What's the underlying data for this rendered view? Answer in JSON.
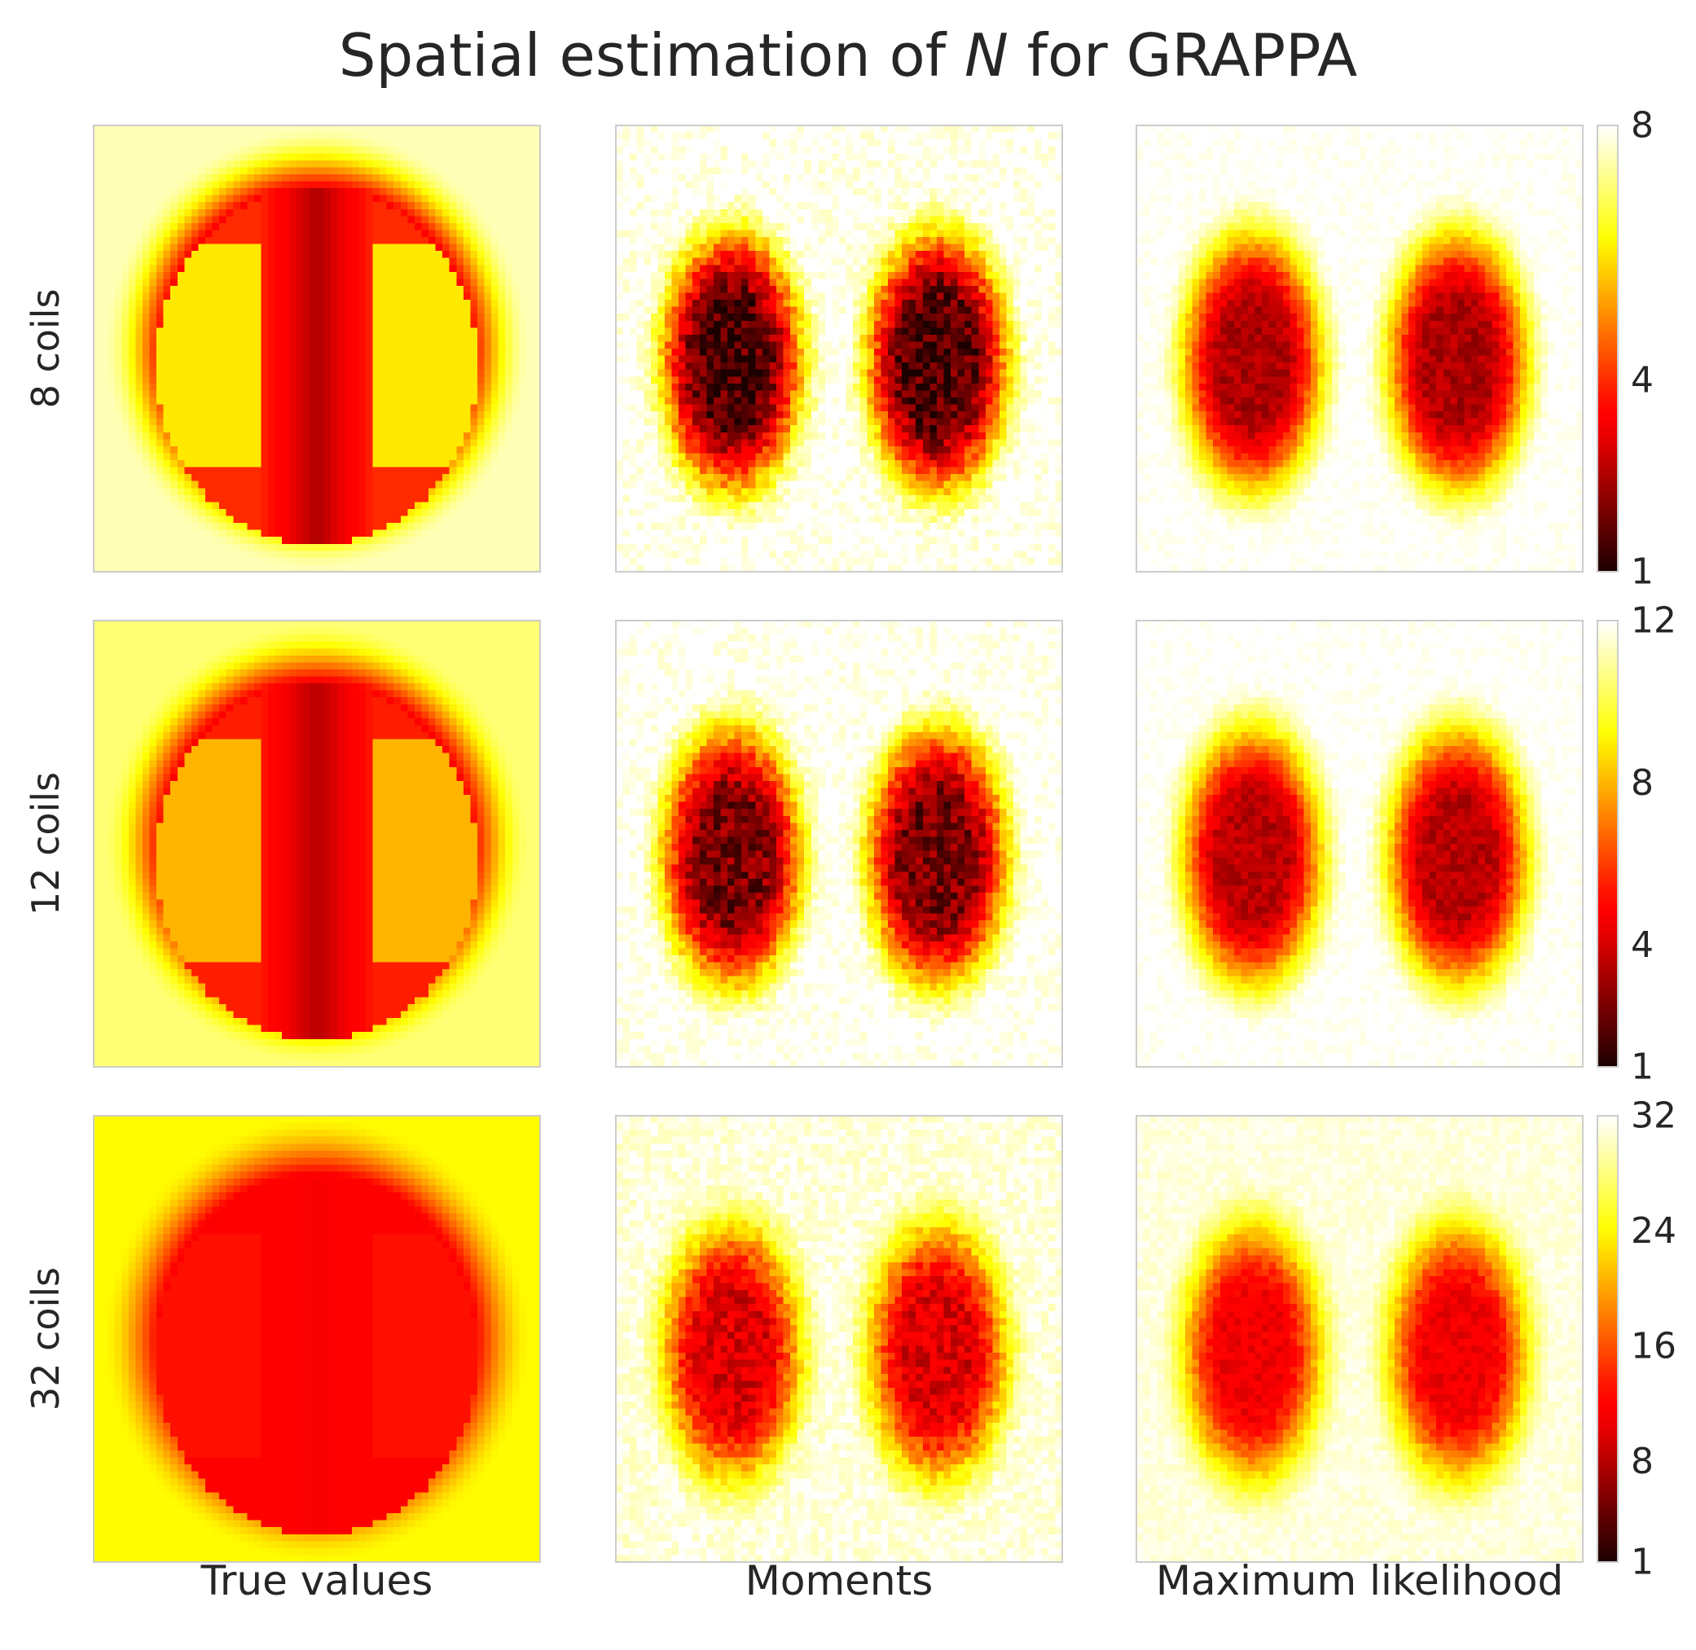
{
  "chart_data": {
    "type": "heatmap",
    "title": {
      "prefix": "Spatial estimation of ",
      "variable": "N",
      "suffix": " for GRAPPA"
    },
    "colormap": "hot",
    "grid": false,
    "column_labels": [
      "True values",
      "Moments",
      "Maximum likelihood"
    ],
    "rows": [
      {
        "label": "8 coils",
        "colorbar": {
          "min": 1,
          "max": 8,
          "ticks": [
            1,
            4,
            8
          ]
        },
        "panels": [
          {
            "column": "True values",
            "background": 7.5,
            "shadow_min": 1.5,
            "head_outer": 4.0,
            "head_inner": 2.5,
            "lobes": 6.0
          },
          {
            "column": "Moments",
            "background": 8.0,
            "blob_min": 1.5,
            "noise": 0.45
          },
          {
            "column": "Maximum likelihood",
            "background": 8.0,
            "blob_min": 2.5,
            "noise": 0.2
          }
        ]
      },
      {
        "label": "12 coils",
        "colorbar": {
          "min": 1,
          "max": 12,
          "ticks": [
            1,
            4,
            8,
            12
          ]
        },
        "panels": [
          {
            "column": "True values",
            "background": 10.5,
            "shadow_min": 2.0,
            "head_outer": 5.5,
            "head_inner": 3.5,
            "lobes": 8.0
          },
          {
            "column": "Moments",
            "background": 12.0,
            "blob_min": 2.5,
            "noise": 0.6
          },
          {
            "column": "Maximum likelihood",
            "background": 12.0,
            "blob_min": 3.5,
            "noise": 0.3
          }
        ]
      },
      {
        "label": "32 coils",
        "colorbar": {
          "min": 1,
          "max": 32,
          "ticks": [
            1,
            8,
            16,
            24,
            32
          ]
        },
        "panels": [
          {
            "column": "True values",
            "background": 24.0,
            "shadow_min": 5.0,
            "head_outer": 12.0,
            "head_inner": 11.0,
            "lobes": 13.0
          },
          {
            "column": "Moments",
            "background": 31.0,
            "blob_min": 10.0,
            "noise": 1.4
          },
          {
            "column": "Maximum likelihood",
            "background": 31.0,
            "blob_min": 11.0,
            "noise": 0.8
          }
        ]
      }
    ]
  }
}
